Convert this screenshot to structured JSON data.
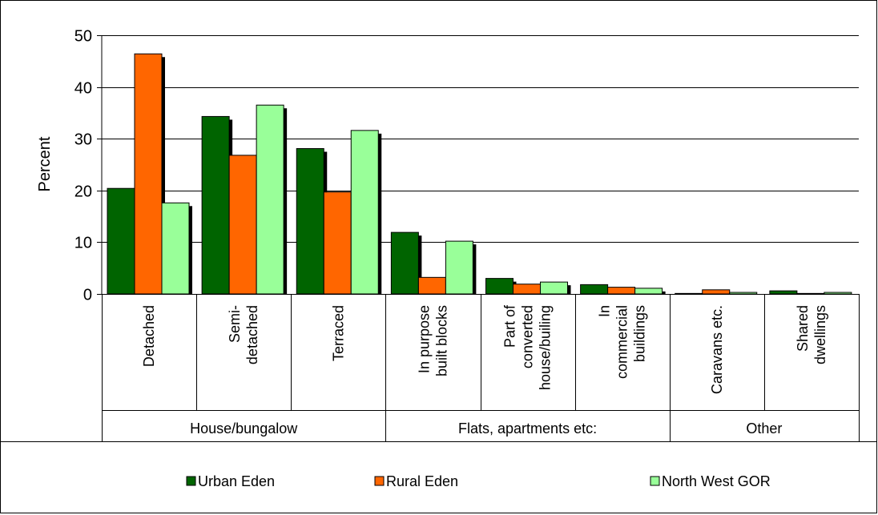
{
  "chart_data": {
    "type": "bar",
    "ylabel": "Percent",
    "ylim": [
      0,
      50
    ],
    "yticks": [
      0,
      10,
      20,
      30,
      40,
      50
    ],
    "grid": true,
    "legend_position": "bottom",
    "categories": [
      [
        "Detached"
      ],
      [
        "Semi-",
        "detached"
      ],
      [
        "Terraced"
      ],
      [
        "In purpose",
        "built blocks"
      ],
      [
        "Part of",
        "converted",
        "house/builing"
      ],
      [
        "In",
        "commercial",
        "buildings"
      ],
      [
        "Caravans etc."
      ],
      [
        "Shared",
        "dwellings"
      ]
    ],
    "groups": [
      {
        "label": "House/bungalow",
        "span": [
          0,
          2
        ]
      },
      {
        "label": "Flats, apartments etc:",
        "span": [
          3,
          5
        ]
      },
      {
        "label": "Other",
        "span": [
          6,
          7
        ]
      }
    ],
    "series": [
      {
        "name": "Urban Eden",
        "color": "#006400",
        "values": [
          20.4,
          34.3,
          28.1,
          11.9,
          3.0,
          1.8,
          0.1,
          0.6
        ]
      },
      {
        "name": "Rural Eden",
        "color": "#ff6600",
        "values": [
          46.4,
          26.8,
          19.7,
          3.2,
          1.9,
          1.3,
          0.8,
          0.1
        ]
      },
      {
        "name": "North West GOR",
        "color": "#99ff99",
        "values": [
          17.6,
          36.5,
          31.6,
          10.2,
          2.3,
          1.1,
          0.3,
          0.3
        ]
      }
    ]
  }
}
